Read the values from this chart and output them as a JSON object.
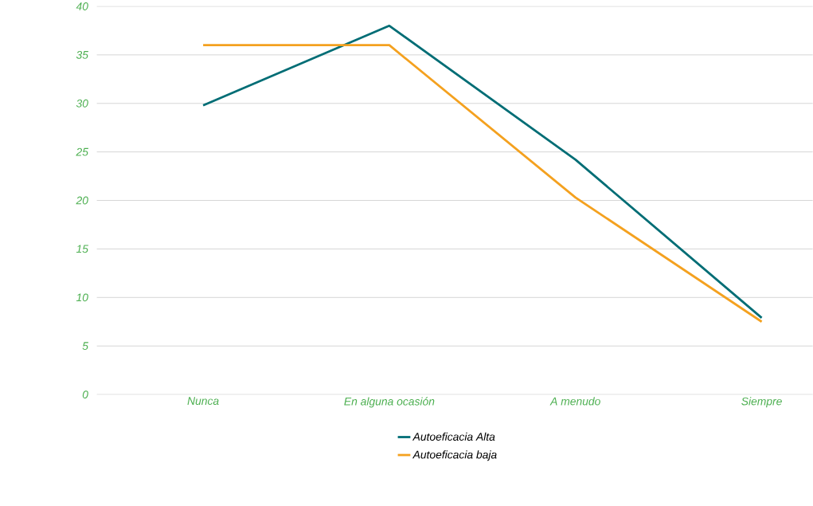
{
  "chart_data": {
    "type": "line",
    "categories": [
      "Nunca",
      "En alguna ocasión",
      "A menudo",
      "Siempre"
    ],
    "series": [
      {
        "name": "Autoeficacia Alta",
        "color": "#006d75",
        "values": [
          29.8,
          38,
          24.2,
          7.9
        ]
      },
      {
        "name": "Autoeficacia baja",
        "color": "#f4a11f",
        "values": [
          36,
          36,
          20.3,
          7.5
        ]
      }
    ],
    "ylim": [
      0,
      40
    ],
    "yticks": [
      0,
      5,
      10,
      15,
      20,
      25,
      30,
      35,
      40
    ],
    "grid": "y",
    "legend": "bottom",
    "marker": "none",
    "line_style": "solid"
  }
}
